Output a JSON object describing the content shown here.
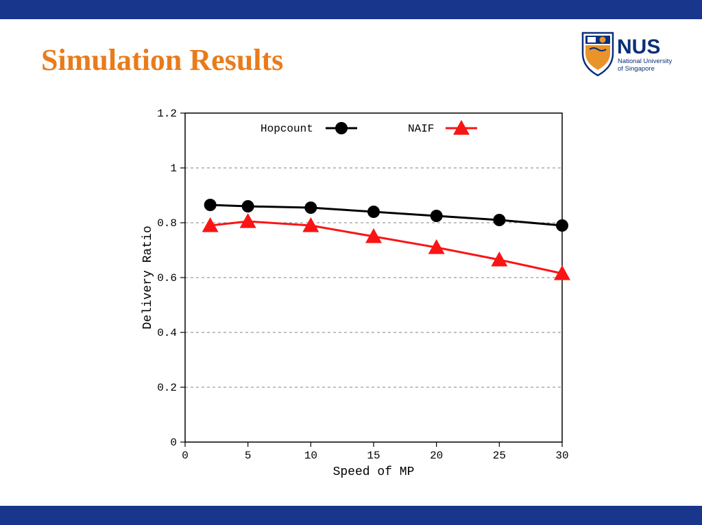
{
  "slide": {
    "title": "Simulation Results",
    "title_color": "#e97b1b",
    "brand_bar_color": "#18368b"
  },
  "logo": {
    "primary_text": "NUS",
    "sub_text1": "National University",
    "sub_text2": "of Singapore",
    "text_color": "#0b2f7a",
    "shield_orange": "#e9932b",
    "shield_blue": "#0b2f7a"
  },
  "chart": {
    "type": "line",
    "xlabel": "Speed of MP",
    "ylabel": "Delivery Ratio",
    "xlim": [
      0,
      30
    ],
    "ylim": [
      0,
      1.2
    ],
    "xticks": [
      0,
      5,
      10,
      15,
      20,
      25,
      30
    ],
    "yticks": [
      0,
      0.2,
      0.4,
      0.6,
      0.8,
      1,
      1.2
    ],
    "axis_font": "Courier New",
    "tick_fontsize": 16,
    "label_fontsize": 18,
    "background_color": "#ffffff",
    "grid_color": "#808080",
    "grid_dash": "4 4",
    "frame_color": "#000000",
    "series": [
      {
        "name": "Hopcount",
        "marker": "circle",
        "marker_size": 9,
        "color": "#000000",
        "line_width": 3,
        "x": [
          2,
          5,
          10,
          15,
          20,
          25,
          30
        ],
        "y": [
          0.865,
          0.86,
          0.855,
          0.84,
          0.825,
          0.81,
          0.79
        ]
      },
      {
        "name": "NAIF",
        "marker": "triangle",
        "marker_size": 10,
        "color": "#fa1414",
        "line_width": 3,
        "x": [
          2,
          5,
          10,
          15,
          20,
          25,
          30
        ],
        "y": [
          0.79,
          0.805,
          0.79,
          0.75,
          0.71,
          0.665,
          0.615
        ]
      }
    ],
    "legend": {
      "position": "top-inside",
      "items": [
        "Hopcount",
        "NAIF"
      ]
    }
  }
}
